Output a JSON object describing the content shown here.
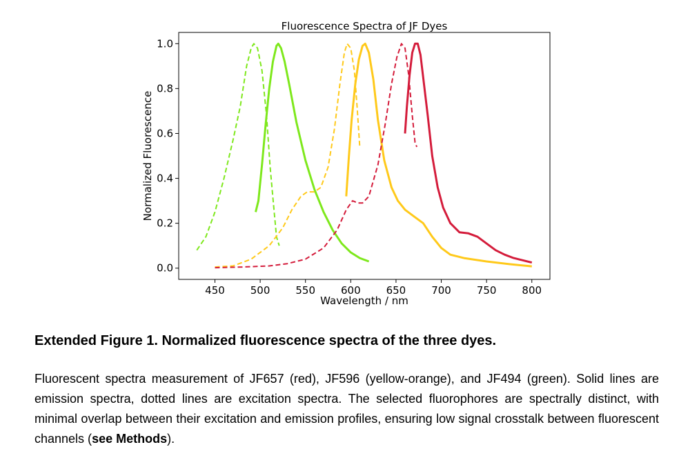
{
  "chart_data": {
    "type": "line",
    "title": "Fluorescence Spectra of JF Dyes",
    "xlabel": "Wavelength / nm",
    "ylabel": "Normalized Fluorescence",
    "xlim": [
      410,
      820
    ],
    "ylim": [
      -0.05,
      1.05
    ],
    "xticks": [
      450,
      500,
      550,
      600,
      650,
      700,
      750,
      800
    ],
    "yticks": [
      0.0,
      0.2,
      0.4,
      0.6,
      0.8,
      1.0
    ],
    "xtick_labels": [
      "450",
      "500",
      "550",
      "600",
      "650",
      "700",
      "750",
      "800"
    ],
    "ytick_labels": [
      "0.0",
      "0.2",
      "0.4",
      "0.6",
      "0.8",
      "1.0"
    ],
    "grid": false,
    "legend": "none",
    "series": [
      {
        "dye": "JF494",
        "kind": "excitation",
        "style": "dashed",
        "color": "#7ee81c",
        "points": [
          [
            430,
            0.08
          ],
          [
            440,
            0.14
          ],
          [
            450,
            0.25
          ],
          [
            460,
            0.4
          ],
          [
            470,
            0.57
          ],
          [
            478,
            0.72
          ],
          [
            485,
            0.9
          ],
          [
            490,
            0.98
          ],
          [
            493,
            1.0
          ],
          [
            497,
            0.98
          ],
          [
            502,
            0.88
          ],
          [
            507,
            0.68
          ],
          [
            511,
            0.45
          ],
          [
            515,
            0.27
          ],
          [
            518,
            0.14
          ],
          [
            521,
            0.1
          ]
        ]
      },
      {
        "dye": "JF494",
        "kind": "emission",
        "style": "solid",
        "color": "#7ee81c",
        "points": [
          [
            495,
            0.25
          ],
          [
            498,
            0.3
          ],
          [
            502,
            0.46
          ],
          [
            506,
            0.64
          ],
          [
            510,
            0.8
          ],
          [
            514,
            0.92
          ],
          [
            518,
            0.99
          ],
          [
            520,
            1.0
          ],
          [
            523,
            0.98
          ],
          [
            527,
            0.92
          ],
          [
            532,
            0.82
          ],
          [
            540,
            0.65
          ],
          [
            550,
            0.48
          ],
          [
            560,
            0.35
          ],
          [
            570,
            0.25
          ],
          [
            580,
            0.17
          ],
          [
            590,
            0.11
          ],
          [
            600,
            0.07
          ],
          [
            610,
            0.045
          ],
          [
            620,
            0.03
          ]
        ]
      },
      {
        "dye": "JF596",
        "kind": "excitation",
        "style": "dashed",
        "color": "#ffc91a",
        "points": [
          [
            450,
            0.005
          ],
          [
            470,
            0.01
          ],
          [
            490,
            0.04
          ],
          [
            510,
            0.1
          ],
          [
            525,
            0.18
          ],
          [
            535,
            0.26
          ],
          [
            545,
            0.32
          ],
          [
            552,
            0.34
          ],
          [
            560,
            0.34
          ],
          [
            567,
            0.36
          ],
          [
            575,
            0.45
          ],
          [
            582,
            0.62
          ],
          [
            588,
            0.82
          ],
          [
            593,
            0.96
          ],
          [
            596,
            1.0
          ],
          [
            600,
            0.98
          ],
          [
            604,
            0.88
          ],
          [
            607,
            0.72
          ],
          [
            610,
            0.54
          ]
        ]
      },
      {
        "dye": "JF596",
        "kind": "emission",
        "style": "solid",
        "color": "#ffc91a",
        "points": [
          [
            595,
            0.32
          ],
          [
            598,
            0.5
          ],
          [
            601,
            0.66
          ],
          [
            605,
            0.82
          ],
          [
            609,
            0.93
          ],
          [
            613,
            0.99
          ],
          [
            616,
            1.0
          ],
          [
            620,
            0.96
          ],
          [
            625,
            0.84
          ],
          [
            630,
            0.66
          ],
          [
            637,
            0.48
          ],
          [
            645,
            0.36
          ],
          [
            652,
            0.3
          ],
          [
            660,
            0.26
          ],
          [
            670,
            0.23
          ],
          [
            680,
            0.2
          ],
          [
            690,
            0.14
          ],
          [
            700,
            0.09
          ],
          [
            710,
            0.06
          ],
          [
            725,
            0.045
          ],
          [
            750,
            0.03
          ],
          [
            775,
            0.018
          ],
          [
            800,
            0.008
          ]
        ]
      },
      {
        "dye": "JF657",
        "kind": "excitation",
        "style": "dashed",
        "color": "#d41c3b",
        "points": [
          [
            450,
            0.002
          ],
          [
            480,
            0.005
          ],
          [
            510,
            0.01
          ],
          [
            530,
            0.02
          ],
          [
            550,
            0.04
          ],
          [
            570,
            0.09
          ],
          [
            585,
            0.17
          ],
          [
            595,
            0.26
          ],
          [
            602,
            0.3
          ],
          [
            608,
            0.29
          ],
          [
            613,
            0.29
          ],
          [
            620,
            0.32
          ],
          [
            630,
            0.46
          ],
          [
            638,
            0.64
          ],
          [
            645,
            0.82
          ],
          [
            651,
            0.94
          ],
          [
            656,
            1.0
          ],
          [
            660,
            0.98
          ],
          [
            664,
            0.86
          ],
          [
            668,
            0.68
          ],
          [
            671,
            0.56
          ],
          [
            673,
            0.54
          ]
        ]
      },
      {
        "dye": "JF657",
        "kind": "emission",
        "style": "solid",
        "color": "#d41c3b",
        "points": [
          [
            660,
            0.6
          ],
          [
            662,
            0.72
          ],
          [
            665,
            0.86
          ],
          [
            668,
            0.96
          ],
          [
            671,
            1.0
          ],
          [
            674,
            1.0
          ],
          [
            677,
            0.95
          ],
          [
            680,
            0.85
          ],
          [
            685,
            0.68
          ],
          [
            690,
            0.5
          ],
          [
            696,
            0.36
          ],
          [
            702,
            0.27
          ],
          [
            710,
            0.2
          ],
          [
            720,
            0.16
          ],
          [
            730,
            0.155
          ],
          [
            740,
            0.14
          ],
          [
            750,
            0.11
          ],
          [
            760,
            0.08
          ],
          [
            770,
            0.06
          ],
          [
            780,
            0.045
          ],
          [
            790,
            0.035
          ],
          [
            800,
            0.025
          ]
        ]
      }
    ]
  },
  "caption": {
    "title": "Extended Figure 1. Normalized fluorescence spectra of the three dyes.",
    "body_before": "Fluorescent spectra measurement of JF657 (red), JF596 (yellow-orange), and JF494 (green). Solid lines are emission spectra, dotted lines are excitation spectra. The selected fluorophores are spectrally distinct, with minimal overlap between their excitation and emission profiles, ensuring low signal crosstalk between fluorescent channels (",
    "body_bold": "see Methods",
    "body_after": ")."
  }
}
